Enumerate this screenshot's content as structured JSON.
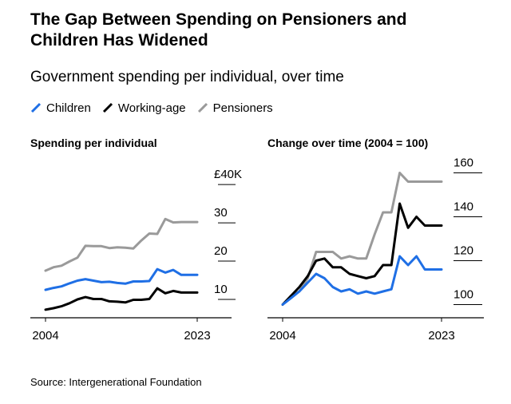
{
  "title": "The Gap Between Spending on Pensioners and Children Has Widened",
  "subtitle": "Government spending per individual, over time",
  "legend": [
    {
      "label": "Children",
      "color": "#1f6fe5"
    },
    {
      "label": "Working-age",
      "color": "#000000"
    },
    {
      "label": "Pensioners",
      "color": "#9a9a9a"
    }
  ],
  "source": "Source: Intergenerational Foundation",
  "chart_data": [
    {
      "type": "line",
      "title": "Spending per individual",
      "x_ticks": [
        "2004",
        "2023"
      ],
      "y_ticks": [
        "£40K",
        "30",
        "20",
        "10"
      ],
      "y_tick_values": [
        40,
        30,
        20,
        10
      ],
      "ylim": [
        7,
        42
      ],
      "xlim": [
        2004,
        2023
      ],
      "grid": false,
      "x": [
        2004,
        2005,
        2006,
        2007,
        2008,
        2009,
        2010,
        2011,
        2012,
        2013,
        2014,
        2015,
        2016,
        2017,
        2018,
        2019,
        2020,
        2021,
        2022,
        2023
      ],
      "series": [
        {
          "name": "Children",
          "color": "#1f6fe5",
          "values": [
            12.5,
            13.0,
            13.4,
            14.2,
            14.9,
            15.3,
            14.9,
            14.5,
            14.6,
            14.3,
            14.1,
            14.7,
            14.7,
            14.8,
            17.9,
            17.0,
            17.7,
            16.4,
            16.4,
            16.4
          ]
        },
        {
          "name": "Working-age",
          "color": "#000000",
          "values": [
            7.3,
            7.7,
            8.2,
            9.0,
            10.0,
            10.6,
            10.1,
            10.1,
            9.5,
            9.4,
            9.2,
            9.9,
            9.9,
            10.1,
            12.9,
            11.6,
            12.2,
            11.8,
            11.8,
            11.8
          ]
        },
        {
          "name": "Pensioners",
          "color": "#9a9a9a",
          "values": [
            17.5,
            18.4,
            18.8,
            19.9,
            20.9,
            24.0,
            23.9,
            23.9,
            23.4,
            23.6,
            23.5,
            23.3,
            25.4,
            27.2,
            27.1,
            31.0,
            30.1,
            30.2,
            30.2,
            30.2
          ]
        }
      ]
    },
    {
      "type": "line",
      "title": "Change over time (2004 = 100)",
      "x_ticks": [
        "2004",
        "2023"
      ],
      "y_ticks": [
        "160",
        "140",
        "120",
        "100"
      ],
      "y_tick_values": [
        160,
        140,
        120,
        100
      ],
      "ylim": [
        100,
        160
      ],
      "xlim": [
        2004,
        2023
      ],
      "grid": false,
      "x": [
        2004,
        2005,
        2006,
        2007,
        2008,
        2009,
        2010,
        2011,
        2012,
        2013,
        2014,
        2015,
        2016,
        2017,
        2018,
        2019,
        2020,
        2021,
        2022,
        2023
      ],
      "series": [
        {
          "name": "Children",
          "color": "#1f6fe5",
          "values": [
            100,
            103,
            106,
            110,
            114,
            112,
            108,
            106,
            107,
            105,
            106,
            105,
            106,
            107,
            122,
            118,
            122,
            116,
            116,
            116
          ]
        },
        {
          "name": "Working-age",
          "color": "#000000",
          "values": [
            100,
            104,
            108,
            113,
            120,
            121,
            117,
            117,
            114,
            113,
            112,
            113,
            118,
            118,
            146,
            135,
            140,
            136,
            136,
            136
          ]
        },
        {
          "name": "Pensioners",
          "color": "#9a9a9a",
          "values": [
            100,
            104,
            106,
            112,
            124,
            124,
            124,
            121,
            122,
            121,
            121,
            132,
            142,
            142,
            160,
            156,
            156,
            156,
            156,
            156
          ]
        }
      ]
    }
  ]
}
